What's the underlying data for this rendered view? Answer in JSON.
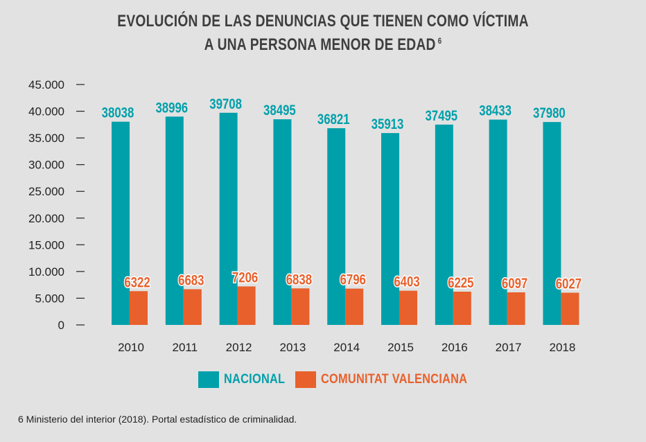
{
  "title": {
    "line1": "EVOLUCIÓN DE LAS DENUNCIAS QUE TIENEN COMO VÍCTIMA",
    "line2": "A UNA PERSONA MENOR DE EDAD",
    "footnote_marker": "6"
  },
  "colors": {
    "nacional": "#00a0aa",
    "valenciana": "#e8602c",
    "axis_text": "#222222",
    "background": "#e2e2e2"
  },
  "chart_data": {
    "type": "bar",
    "categories": [
      "2010",
      "2011",
      "2012",
      "2013",
      "2014",
      "2015",
      "2016",
      "2017",
      "2018"
    ],
    "series": [
      {
        "name": "NACIONAL",
        "values": [
          38038,
          38996,
          39708,
          38495,
          36821,
          35913,
          37495,
          38433,
          37980
        ]
      },
      {
        "name": "COMUNITAT VALENCIANA",
        "values": [
          6322,
          6683,
          7206,
          6838,
          6796,
          6403,
          6225,
          6097,
          6027
        ]
      }
    ],
    "y_ticks": [
      "0",
      "5.000",
      "10.000",
      "15.000",
      "20.000",
      "25.000",
      "30.000",
      "35.000",
      "40.000",
      "45.000"
    ],
    "ylim": [
      0,
      45000
    ],
    "legend_position": "bottom-center",
    "grid": false
  },
  "legend": {
    "nacional_label": "NACIONAL",
    "valenciana_label": "COMUNITAT VALENCIANA"
  },
  "source": "6 Ministerio del interior (2018). Portal estadístico de criminalidad."
}
